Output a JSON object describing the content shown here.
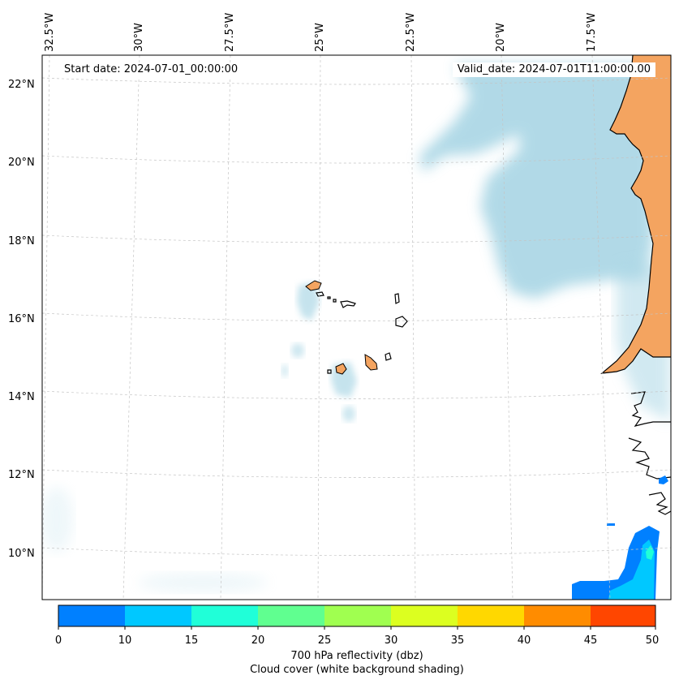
{
  "map": {
    "start_date": "Start date: 2024-07-01_00:00:00",
    "valid_date": "Valid_date: 2024-07-01T11:00:00.00",
    "longitude_labels": [
      "32.5°W",
      "30°W",
      "27.5°W",
      "25°W",
      "22.5°W",
      "20°W",
      "17.5°W"
    ],
    "latitude_labels": [
      "22°N",
      "20°N",
      "18°N",
      "16°N",
      "14°N",
      "12°N",
      "10°N"
    ],
    "land_color": "#f4a460",
    "cloud_color": "#add8e6",
    "coastline_color": "#000000"
  },
  "colorbar": {
    "ticks": [
      "0",
      "10",
      "15",
      "20",
      "25",
      "30",
      "35",
      "40",
      "45",
      "50"
    ],
    "colors": [
      "#0080ff",
      "#00c8ff",
      "#20ffd8",
      "#60ff90",
      "#a0ff50",
      "#dcff20",
      "#ffd800",
      "#ff8c00",
      "#ff4600"
    ],
    "label": "700 hPa reflectivity (dbz)",
    "sublabel": "Cloud cover (white background shading)"
  }
}
